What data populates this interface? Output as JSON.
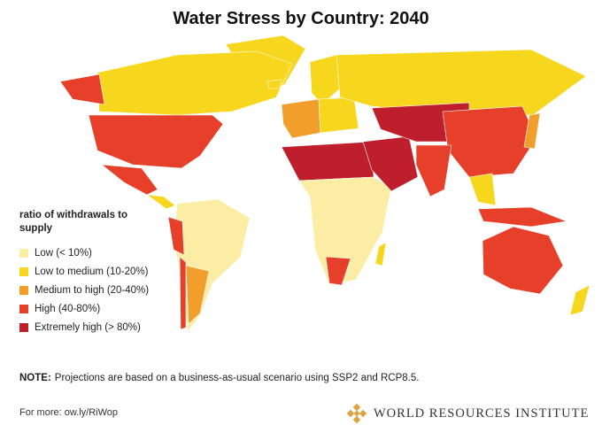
{
  "header": {
    "title": "Water Stress by Country: 2040"
  },
  "legend": {
    "title": "ratio of withdrawals to supply",
    "items": [
      {
        "label": "Low (< 10%)",
        "color": "#fbeda3"
      },
      {
        "label": "Low to medium (10-20%)",
        "color": "#f7d61e"
      },
      {
        "label": "Medium to high (20-40%)",
        "color": "#f29e2c"
      },
      {
        "label": "High (40-80%)",
        "color": "#e6402b"
      },
      {
        "label": "Extremely high (> 80%)",
        "color": "#bf1f2c"
      }
    ]
  },
  "note": {
    "label": "NOTE:",
    "text": "Projections are based on a business-as-usual scenario using SSP2 and RCP8.5."
  },
  "footer": {
    "link": "For more: ow.ly/RiWop",
    "logo": "WORLD RESOURCES INSTITUTE"
  }
}
